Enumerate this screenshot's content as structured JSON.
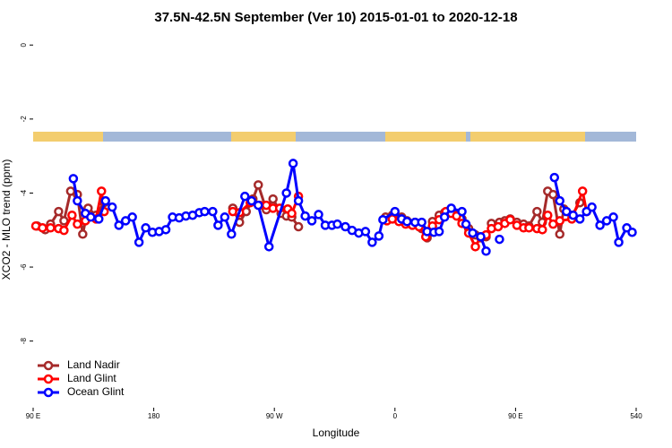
{
  "chart_data": {
    "type": "line",
    "title": "37.5N-42.5N September (Ver 10)   2015-01-01 to 2020-12-18",
    "x_label": "Longitude",
    "y_label": "XCO2 - MLO trend (ppm)",
    "xlim": [
      90,
      540
    ],
    "xticks": [
      {
        "value": 90,
        "label": "90 E"
      },
      180,
      {
        "value": 270,
        "label": "90 W"
      },
      {
        "value": 360,
        "label": "0"
      },
      {
        "value": 450,
        "label": "90 E"
      },
      540
    ],
    "ylim": [
      -9.8,
      0.2
    ],
    "yticks": [
      0,
      -2,
      -4,
      -6,
      -8
    ],
    "legend": "bottom-left",
    "series": [
      {
        "name": "Land Nadir",
        "color": "#a52a2a",
        "x": [
          93,
          99,
          103,
          109,
          113,
          118,
          123,
          127,
          131,
          137,
          143,
          null,
          239,
          244,
          249,
          254,
          258,
          264,
          269,
          275,
          279,
          283,
          288,
          null,
          353,
          358,
          365,
          369,
          375,
          380,
          384,
          388,
          393,
          397,
          402,
          406,
          410,
          415,
          420,
          424,
          428,
          432,
          438,
          442,
          446,
          451,
          456,
          460,
          466,
          470,
          474,
          478,
          483,
          486,
          492,
          498
        ],
        "values": [
          -4.89,
          -4.99,
          -4.84,
          -4.5,
          -4.75,
          -3.95,
          -4.04,
          -5.11,
          -4.41,
          -4.6,
          -4.26,
          null,
          -4.41,
          -4.79,
          -4.5,
          -4.16,
          -3.78,
          -4.45,
          -4.16,
          -4.55,
          -4.62,
          -4.65,
          -4.91,
          null,
          -4.65,
          -4.6,
          -4.65,
          -4.75,
          -4.79,
          -4.96,
          -5.21,
          -4.77,
          -4.6,
          -4.53,
          -4.45,
          -4.58,
          -4.7,
          -4.96,
          -5.13,
          -5.21,
          -5.18,
          -4.82,
          -4.79,
          -4.75,
          -4.7,
          -4.79,
          -4.84,
          -4.89,
          -4.5,
          -4.79,
          -3.95,
          -4.04,
          -5.11,
          -4.43,
          -4.6,
          -4.26
        ]
      },
      {
        "name": "Land Glint",
        "color": "#ff0000",
        "x": [
          92,
          97,
          103,
          109,
          113,
          119,
          123,
          129,
          137,
          141,
          143,
          null,
          239,
          244,
          252,
          259,
          264,
          269,
          274,
          280,
          283,
          288,
          null,
          354,
          358,
          363,
          368,
          373,
          378,
          383,
          388,
          393,
          398,
          402,
          406,
          410,
          415,
          420,
          424,
          428,
          432,
          437,
          442,
          446,
          451,
          456,
          460,
          466,
          470,
          474,
          478,
          483,
          492,
          500,
          503
        ],
        "values": [
          -4.89,
          -4.94,
          -4.94,
          -4.96,
          -5.01,
          -4.6,
          -4.84,
          -4.75,
          -4.7,
          -3.95,
          -4.5,
          null,
          -4.5,
          -4.53,
          -4.26,
          -4.33,
          -4.33,
          -4.41,
          -4.41,
          -4.43,
          -4.55,
          -4.09,
          null,
          -4.75,
          -4.7,
          -4.77,
          -4.84,
          -4.87,
          -4.91,
          -5.18,
          -4.89,
          -4.72,
          -4.5,
          -4.55,
          -4.62,
          -4.82,
          -5.08,
          -5.45,
          -5.18,
          -5.13,
          -4.96,
          -4.91,
          -4.82,
          -4.72,
          -4.87,
          -4.94,
          -4.94,
          -4.96,
          -4.99,
          -4.6,
          -4.84,
          -4.75,
          -4.7,
          -3.95,
          -4.5
        ]
      },
      {
        "name": "Ocean Glint",
        "color": "#0000ff",
        "x": [
          120,
          123,
          129,
          133,
          139,
          144,
          149,
          154,
          159,
          164,
          169,
          174,
          179,
          184,
          189,
          194,
          199,
          204,
          209,
          214,
          218,
          224,
          228,
          233,
          238,
          248,
          253,
          258,
          266,
          279,
          284,
          288,
          293,
          298,
          303,
          308,
          313,
          317,
          323,
          328,
          333,
          338,
          343,
          348,
          351,
          360,
          365,
          369,
          375,
          380,
          384,
          389,
          393,
          397,
          402,
          410,
          413,
          418,
          424,
          428,
          null,
          438,
          null,
          479,
          483,
          488,
          493,
          498,
          503,
          507,
          513,
          518,
          523,
          527,
          533,
          537
        ],
        "values": [
          -3.61,
          -4.21,
          -4.55,
          -4.65,
          -4.7,
          -4.21,
          -4.38,
          -4.87,
          -4.75,
          -4.65,
          -5.33,
          -4.94,
          -5.06,
          -5.04,
          -4.99,
          -4.65,
          -4.67,
          -4.62,
          -4.6,
          -4.53,
          -4.5,
          -4.5,
          -4.87,
          -4.65,
          -5.11,
          -4.09,
          -4.21,
          -4.33,
          -5.45,
          -4.0,
          -3.2,
          -4.21,
          -4.62,
          -4.75,
          -4.58,
          -4.87,
          -4.87,
          -4.84,
          -4.91,
          -5.01,
          -5.08,
          -5.04,
          -5.33,
          -5.16,
          -4.72,
          -4.5,
          -4.7,
          -4.77,
          -4.79,
          -4.79,
          -5.04,
          -5.06,
          -5.04,
          -4.65,
          -4.41,
          -4.5,
          -4.84,
          -5.08,
          -5.18,
          -5.57,
          null,
          -5.25,
          null,
          -3.58,
          -4.21,
          -4.5,
          -4.6,
          -4.7,
          -4.5,
          -4.38,
          -4.87,
          -4.75,
          -4.65,
          -5.33,
          -4.94,
          -5.06
        ]
      }
    ]
  }
}
